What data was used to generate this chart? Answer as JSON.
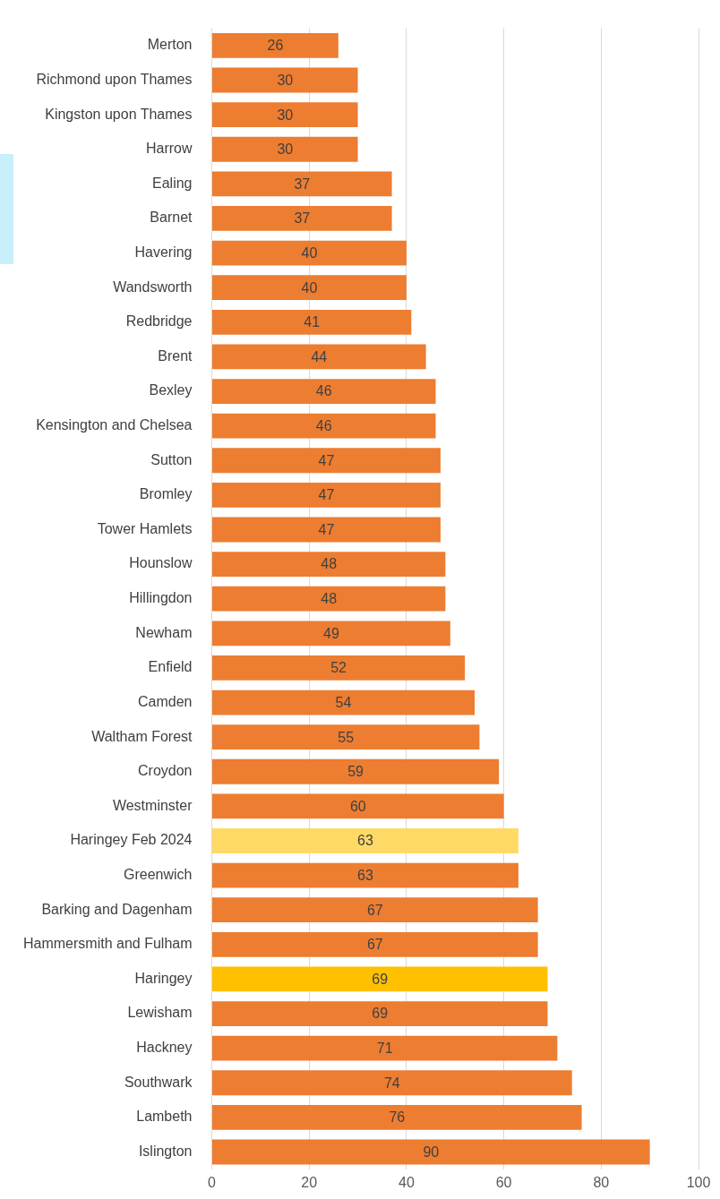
{
  "chart_data": {
    "type": "bar",
    "orientation": "horizontal",
    "categories": [
      "Merton",
      "Richmond upon Thames",
      "Kingston upon Thames",
      "Harrow",
      "Ealing",
      "Barnet",
      "Havering",
      "Wandsworth",
      "Redbridge",
      "Brent",
      "Bexley",
      "Kensington and Chelsea",
      "Sutton",
      "Bromley",
      "Tower Hamlets",
      "Hounslow",
      "Hillingdon",
      "Newham",
      "Enfield",
      "Camden",
      "Waltham Forest",
      "Croydon",
      "Westminster",
      "Haringey Feb 2024",
      "Greenwich",
      "Barking and Dagenham",
      "Hammersmith and Fulham",
      "Haringey",
      "Lewisham",
      "Hackney",
      "Southwark",
      "Lambeth",
      "Islington"
    ],
    "values": [
      26,
      30,
      30,
      30,
      37,
      37,
      40,
      40,
      41,
      44,
      46,
      46,
      47,
      47,
      47,
      48,
      48,
      49,
      52,
      54,
      55,
      59,
      60,
      63,
      63,
      67,
      67,
      69,
      69,
      71,
      74,
      76,
      90
    ],
    "colors": [
      "#ed7d31",
      "#ed7d31",
      "#ed7d31",
      "#ed7d31",
      "#ed7d31",
      "#ed7d31",
      "#ed7d31",
      "#ed7d31",
      "#ed7d31",
      "#ed7d31",
      "#ed7d31",
      "#ed7d31",
      "#ed7d31",
      "#ed7d31",
      "#ed7d31",
      "#ed7d31",
      "#ed7d31",
      "#ed7d31",
      "#ed7d31",
      "#ed7d31",
      "#ed7d31",
      "#ed7d31",
      "#ed7d31",
      "#ffd966",
      "#ed7d31",
      "#ed7d31",
      "#ed7d31",
      "#ffc000",
      "#ed7d31",
      "#ed7d31",
      "#ed7d31",
      "#ed7d31",
      "#ed7d31"
    ],
    "xlim": [
      0,
      100
    ],
    "xticks": [
      0,
      20,
      40,
      60,
      80,
      100
    ],
    "grid": "x",
    "data_labels": true,
    "legend": false
  }
}
